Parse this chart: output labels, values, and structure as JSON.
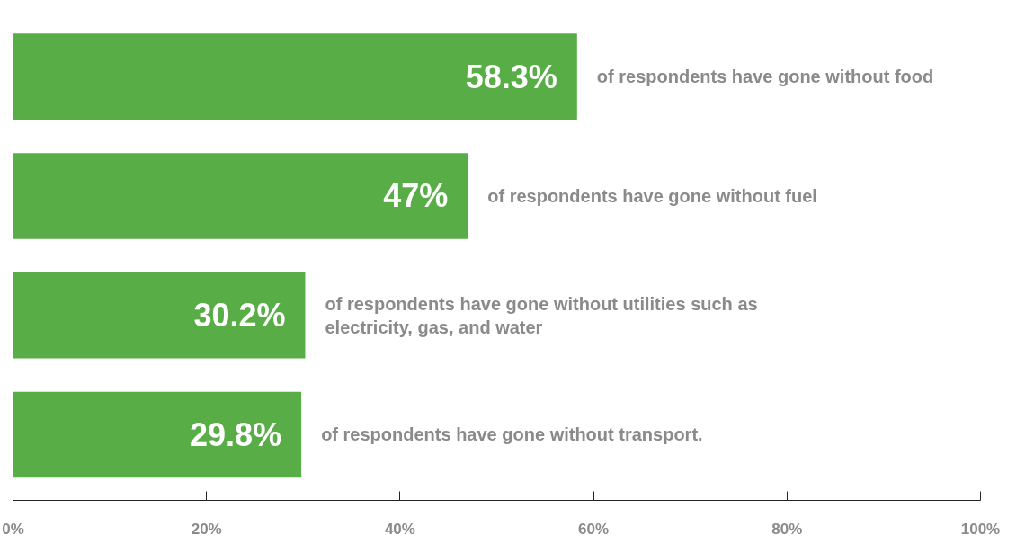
{
  "chart_data": {
    "type": "bar",
    "orientation": "horizontal",
    "categories": [
      "of respondents have gone without food",
      "of respondents have gone without fuel",
      "of respondents have gone without utilities such as electricity, gas, and water",
      "of respondents have gone without transport."
    ],
    "values": [
      58.3,
      47,
      30.2,
      29.8
    ],
    "value_labels": [
      "58.3%",
      "47%",
      "30.2%",
      "29.8%"
    ],
    "color": "#58ad46",
    "xlim": [
      0,
      100
    ],
    "xticks": [
      {
        "value": 0,
        "label": "0%"
      },
      {
        "value": 20,
        "label": "20%"
      },
      {
        "value": 40,
        "label": "40%"
      },
      {
        "value": 60,
        "label": "60%"
      },
      {
        "value": 80,
        "label": "80%"
      },
      {
        "value": 100,
        "label": "100%"
      }
    ],
    "grid": false
  }
}
